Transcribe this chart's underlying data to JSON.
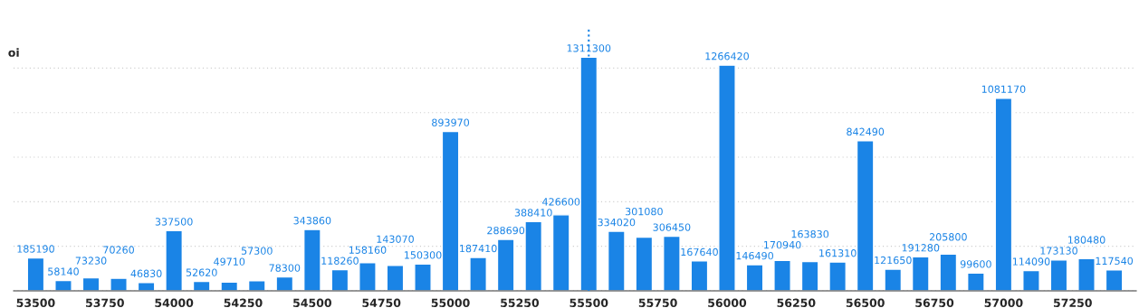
{
  "chart_data": {
    "type": "bar",
    "ylabel": "oi",
    "x": [
      53500,
      53600,
      53700,
      53800,
      53900,
      54000,
      54100,
      54200,
      54300,
      54400,
      54500,
      54600,
      54700,
      54800,
      54900,
      55000,
      55100,
      55200,
      55300,
      55400,
      55500,
      55600,
      55700,
      55800,
      55900,
      56000,
      56100,
      56200,
      56300,
      56400,
      56500,
      56600,
      56700,
      56800,
      56900,
      57000,
      57100,
      57200,
      57300,
      57400
    ],
    "values": [
      185190,
      58140,
      73230,
      70260,
      46830,
      337500,
      52620,
      49710,
      57300,
      78300,
      343860,
      118260,
      158160,
      143070,
      150300,
      893970,
      187410,
      288690,
      388410,
      426600,
      1311300,
      334020,
      301080,
      306450,
      167640,
      1266420,
      146490,
      170940,
      163830,
      161310,
      842490,
      121650,
      191280,
      205800,
      99600,
      1081170,
      114090,
      173130,
      180480,
      117540
    ],
    "color": "#1a84e6",
    "data_labels": true,
    "grid": "y",
    "xlim": [
      53420,
      57480
    ],
    "xticks": [
      53500,
      53750,
      54000,
      54250,
      54500,
      54750,
      55000,
      55250,
      55500,
      55750,
      56000,
      56250,
      56500,
      56750,
      57000,
      57250
    ],
    "ylim": [
      0,
      1480000
    ],
    "yticks": [
      {
        "value": 0,
        "label": null
      },
      {
        "value": 250000,
        "label": null
      },
      {
        "value": 500000,
        "label": null
      },
      {
        "value": 750000,
        "label": null
      },
      {
        "value": 1000000,
        "label": null
      },
      {
        "value": 1250000,
        "label": null
      }
    ],
    "tick_labels": "x",
    "ref_lines": [
      {
        "axis": "x",
        "value": 55500,
        "color": "#1a84e6",
        "line_style": "dotted"
      }
    ]
  }
}
